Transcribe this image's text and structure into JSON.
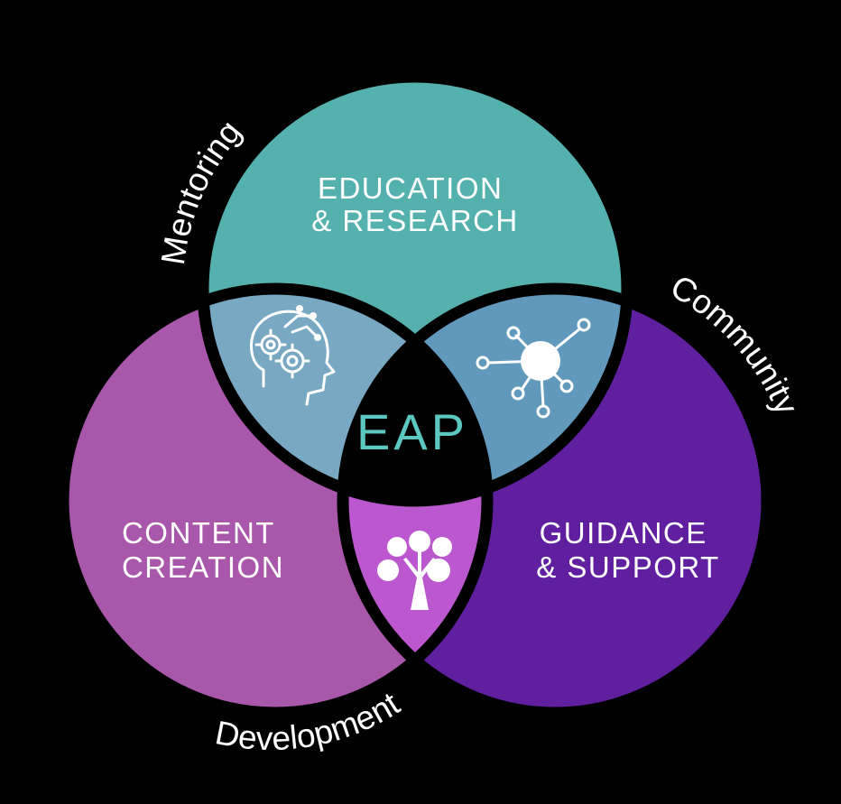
{
  "circles": {
    "top": {
      "line1": "EDUCATION",
      "line2": "& RESEARCH",
      "color": "#55b1ae"
    },
    "left": {
      "line1": "CONTENT",
      "line2": "CREATION",
      "color": "#a957ab"
    },
    "right": {
      "line1": "GUIDANCE",
      "line2": "& SUPPORT",
      "color": "#5f1f9f"
    }
  },
  "overlaps": {
    "top_left": {
      "icon": "gears-head-icon",
      "color": "#78a8c2"
    },
    "top_right": {
      "icon": "network-hub-icon",
      "color": "#6199bd"
    },
    "bottom": {
      "icon": "tree-icon",
      "color": "#bc58cf"
    }
  },
  "center": {
    "label": "EAP",
    "color": "#000000",
    "text_color": "#5cc6c0"
  },
  "arc_labels": {
    "top_left": "Mentoring",
    "right": "Community",
    "bottom": "Development"
  },
  "background": "#000000",
  "outline": "#000000"
}
